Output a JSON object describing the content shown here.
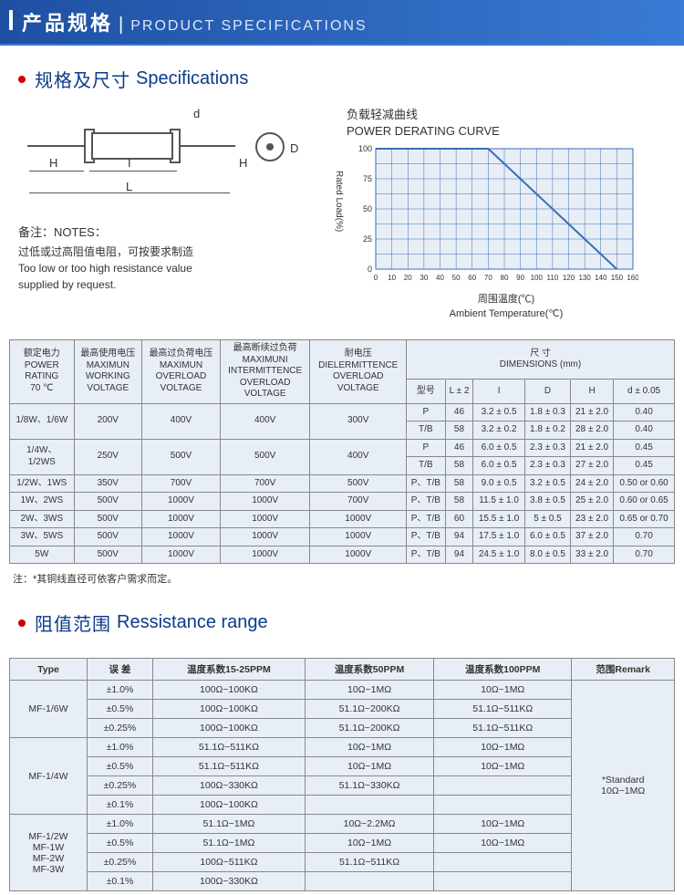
{
  "header": {
    "cn": "产品规格",
    "sep": "|",
    "en": "PRODUCT SPECIFICATIONS"
  },
  "sec1": {
    "cn": "规格及尺寸",
    "en": "Specifications"
  },
  "diagram": {
    "H": "H",
    "I": "I",
    "L": "L",
    "d": "d",
    "D": "D"
  },
  "notes": {
    "label_cn": "备注：",
    "label_en": "NOTES：",
    "line1_cn": "过低或过高阻值电阻，可按要求制造",
    "line1_en": "Too low or too high resistance value",
    "line2_en": "supplied by request."
  },
  "curve": {
    "title_cn": "负载轻减曲线",
    "title_en": "POWER DERATING CURVE",
    "y_label": "Rated Load(%)",
    "x_label_cn": "周围温度(℃)",
    "x_label_en": "Ambient Temperature(℃)",
    "y_ticks": [
      "0",
      "25",
      "50",
      "75",
      "100"
    ],
    "x_ticks": [
      "0",
      "10",
      "20",
      "30",
      "40",
      "50",
      "60",
      "70",
      "80",
      "90",
      "100",
      "110",
      "120",
      "130",
      "140",
      "150",
      "160"
    ],
    "line_points": [
      [
        0,
        100
      ],
      [
        70,
        100
      ],
      [
        150,
        0
      ]
    ],
    "grid_color": "#3a6db5",
    "line_color": "#3a6db5",
    "bg": "#e8eef6"
  },
  "spec_table": {
    "col_heads": {
      "power": {
        "l1": "额定电力",
        "l2": "POWER",
        "l3": "RATING",
        "l4": "70 ℃"
      },
      "maxwork": {
        "l1": "最高使用电压",
        "l2": "MAXIMUN",
        "l3": "WORKING",
        "l4": "VOLTAGE"
      },
      "maxover": {
        "l1": "最高过负荷电压",
        "l2": "MAXIMUN",
        "l3": "OVERLOAD",
        "l4": "VOLTAGE"
      },
      "maxint": {
        "l1": "最高断续过负荷",
        "l2": "MAXIMUNI",
        "l3": "INTERMITTENCE",
        "l4": "OVERLOAD",
        "l5": "VOLTAGE"
      },
      "diel": {
        "l1": "耐电压",
        "l2": "DIELERMITTENCE",
        "l3": "OVERLOAD",
        "l4": "VOLTAGE"
      },
      "dims": {
        "l1": "尺 寸",
        "l2": "DIMENSIONS  (mm)"
      },
      "model": "型号",
      "L": "L ± 2",
      "I": "I",
      "D": "D",
      "H": "H",
      "d": "d ± 0.05"
    },
    "rows": [
      {
        "power": "1/8W、1/6W",
        "mw": "200V",
        "mo": "400V",
        "mi": "400V",
        "di": "300V",
        "dims": [
          [
            "P",
            "46",
            "3.2 ± 0.5",
            "1.8 ± 0.3",
            "21 ± 2.0",
            "0.40"
          ],
          [
            "T/B",
            "58",
            "3.2 ± 0.2",
            "1.8 ± 0.2",
            "28 ± 2.0",
            "0.40"
          ]
        ]
      },
      {
        "power": "1/4W、\n1/2WS",
        "mw": "250V",
        "mo": "500V",
        "mi": "500V",
        "di": "400V",
        "dims": [
          [
            "P",
            "46",
            "6.0 ± 0.5",
            "2.3 ± 0.3",
            "21 ± 2.0",
            "0.45"
          ],
          [
            "T/B",
            "58",
            "6.0 ± 0.5",
            "2.3 ± 0.3",
            "27 ± 2.0",
            "0.45"
          ]
        ]
      },
      {
        "power": "1/2W、1WS",
        "mw": "350V",
        "mo": "700V",
        "mi": "700V",
        "di": "500V",
        "dims": [
          [
            "P、T/B",
            "58",
            "9.0 ± 0.5",
            "3.2 ± 0.5",
            "24 ± 2.0",
            "0.50 or 0.60"
          ]
        ]
      },
      {
        "power": "1W、2WS",
        "mw": "500V",
        "mo": "1000V",
        "mi": "1000V",
        "di": "700V",
        "dims": [
          [
            "P、T/B",
            "58",
            "11.5 ± 1.0",
            "3.8 ± 0.5",
            "25 ± 2.0",
            "0.60 or 0.65"
          ]
        ]
      },
      {
        "power": "2W、3WS",
        "mw": "500V",
        "mo": "1000V",
        "mi": "1000V",
        "di": "1000V",
        "dims": [
          [
            "P、T/B",
            "60",
            "15.5 ± 1.0",
            "5 ± 0.5",
            "23 ± 2.0",
            "0.65 or 0.70"
          ]
        ]
      },
      {
        "power": "3W、5WS",
        "mw": "500V",
        "mo": "1000V",
        "mi": "1000V",
        "di": "1000V",
        "dims": [
          [
            "P、T/B",
            "94",
            "17.5 ± 1.0",
            "6.0 ± 0.5",
            "37 ± 2.0",
            "0.70"
          ]
        ]
      },
      {
        "power": "5W",
        "mw": "500V",
        "mo": "1000V",
        "mi": "1000V",
        "di": "1000V",
        "dims": [
          [
            "P、T/B",
            "94",
            "24.5 ± 1.0",
            "8.0 ± 0.5",
            "33 ± 2.0",
            "0.70"
          ]
        ]
      }
    ],
    "footnote": "注：*其铜线直径可依客户需求而定。"
  },
  "sec2": {
    "cn": "阻值范围",
    "en": "Ressistance range"
  },
  "res_table": {
    "heads": {
      "type": "Type",
      "tol": "误    差",
      "t15": "温度系数15-25PPM",
      "t50": "温度系数50PPM",
      "t100": "温度系数100PPM",
      "remark": "范围Remark"
    },
    "groups": [
      {
        "type": "MF-1/6W",
        "rows": [
          [
            "±1.0%",
            "100Ω~100KΩ",
            "10Ω~1MΩ",
            "10Ω~1MΩ"
          ],
          [
            "±0.5%",
            "100Ω~100KΩ",
            "51.1Ω~200KΩ",
            "51.1Ω~511KΩ"
          ],
          [
            "±0.25%",
            "100Ω~100KΩ",
            "51.1Ω~200KΩ",
            "51.1Ω~511KΩ"
          ]
        ]
      },
      {
        "type": "MF-1/4W",
        "rows": [
          [
            "±1.0%",
            "51.1Ω~511KΩ",
            "10Ω~1MΩ",
            "10Ω~1MΩ"
          ],
          [
            "±0.5%",
            "51.1Ω~511KΩ",
            "10Ω~1MΩ",
            "10Ω~1MΩ"
          ],
          [
            "±0.25%",
            "100Ω~330KΩ",
            "51.1Ω~330KΩ",
            ""
          ],
          [
            "±0.1%",
            "100Ω~100KΩ",
            "",
            ""
          ]
        ]
      },
      {
        "type": "MF-1/2W\nMF-1W\nMF-2W\nMF-3W",
        "rows": [
          [
            "±1.0%",
            "51.1Ω~1MΩ",
            "10Ω~2.2MΩ",
            "10Ω~1MΩ"
          ],
          [
            "±0.5%",
            "51.1Ω~1MΩ",
            "10Ω~1MΩ",
            "10Ω~1MΩ"
          ],
          [
            "±0.25%",
            "100Ω~511KΩ",
            "51.1Ω~511KΩ",
            ""
          ],
          [
            "±0.1%",
            "100Ω~330KΩ",
            "",
            ""
          ]
        ]
      }
    ],
    "remark_lines": [
      "*Standard",
      "10Ω~1MΩ"
    ]
  }
}
